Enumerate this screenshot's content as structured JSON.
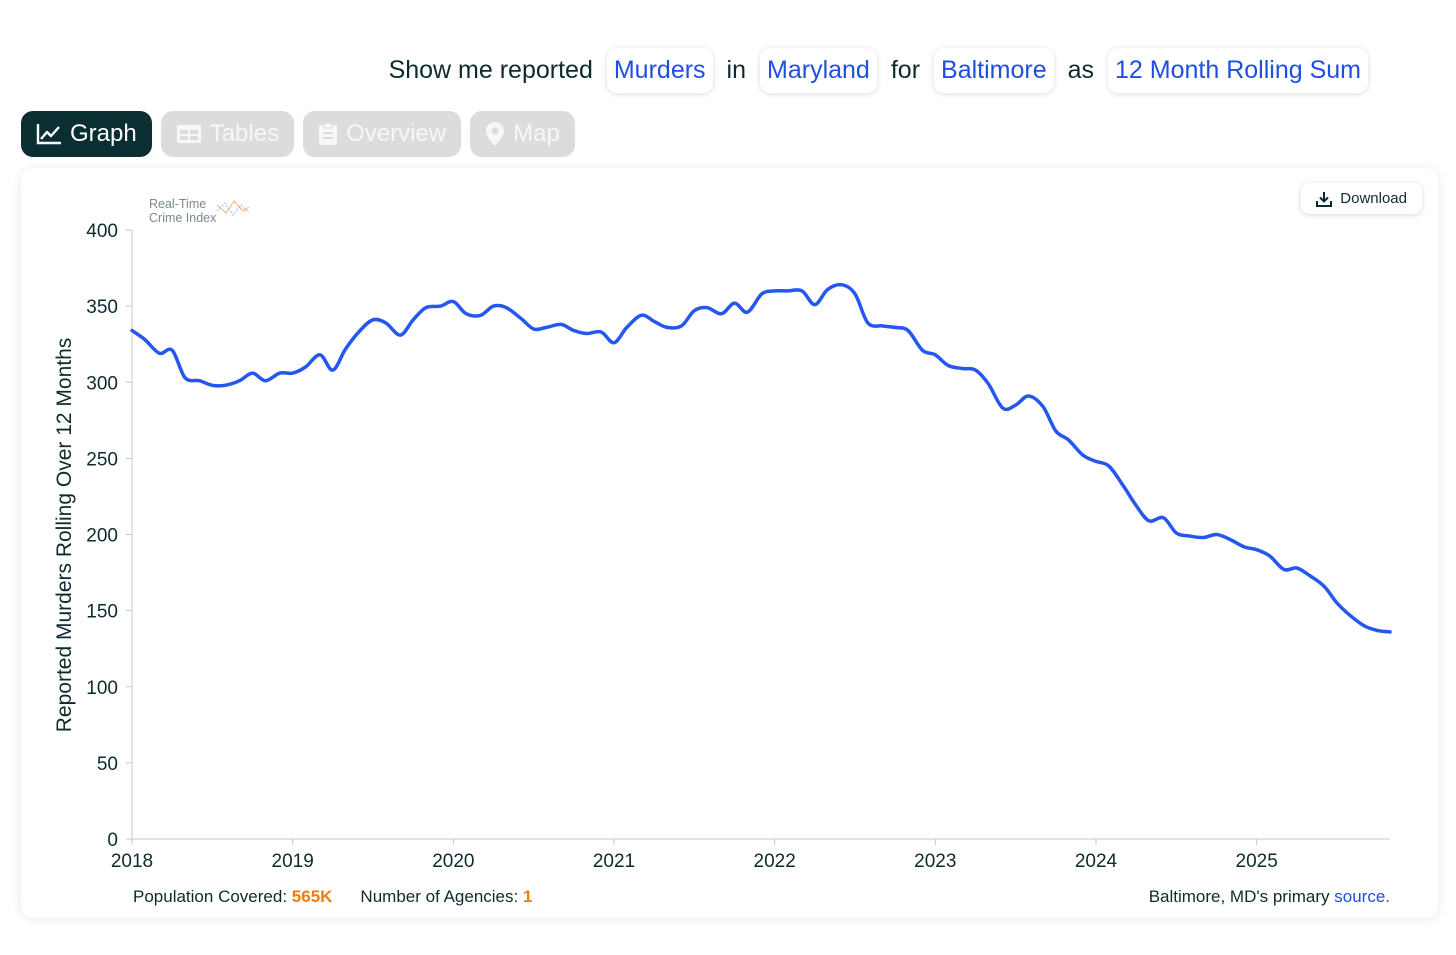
{
  "query": {
    "prefix": "Show me reported",
    "crime": "Murders",
    "in_word": "in",
    "state": "Maryland",
    "for_word": "for",
    "agency": "Baltimore",
    "as_word": "as",
    "measure": "12 Month Rolling Sum"
  },
  "tabs": [
    {
      "label": "Graph",
      "icon": "line-chart-icon",
      "active": true
    },
    {
      "label": "Tables",
      "icon": "table-icon",
      "active": false
    },
    {
      "label": "Overview",
      "icon": "clipboard-icon",
      "active": false
    },
    {
      "label": "Map",
      "icon": "map-pin-icon",
      "active": false
    }
  ],
  "download_label": "Download",
  "logo": {
    "line1": "Real-Time",
    "line2": "Crime Index"
  },
  "footer": {
    "population_label": "Population Covered:",
    "population_value": "565K",
    "agencies_label": "Number of Agencies:",
    "agencies_value": "1",
    "source_prefix": "Baltimore, MD's primary",
    "source_link": "source."
  },
  "colors": {
    "line": "#2457ee",
    "accent": "#f07d10",
    "link": "#1f4fe0",
    "tab_active": "#0a2e31"
  },
  "chart_data": {
    "type": "line",
    "title": "",
    "xlabel": "",
    "ylabel": "Reported Murders Rolling Over 12 Months",
    "xlim": [
      2018.0,
      2025.83
    ],
    "ylim": [
      0,
      400
    ],
    "xticks": [
      "2018",
      "2019",
      "2020",
      "2021",
      "2022",
      "2023",
      "2024",
      "2025"
    ],
    "yticks": [
      0,
      50,
      100,
      150,
      200,
      250,
      300,
      350,
      400
    ],
    "grid": false,
    "legend": "none",
    "series": [
      {
        "x": [
          2018.0,
          2018.08,
          2018.17,
          2018.25,
          2018.33,
          2018.42,
          2018.5,
          2018.58,
          2018.67,
          2018.75,
          2018.83,
          2018.92,
          2019.0,
          2019.08,
          2019.17,
          2019.25,
          2019.33,
          2019.42,
          2019.5,
          2019.58,
          2019.67,
          2019.75,
          2019.83,
          2019.92,
          2020.0,
          2020.08,
          2020.17,
          2020.25,
          2020.33,
          2020.42,
          2020.5,
          2020.58,
          2020.67,
          2020.75,
          2020.83,
          2020.92,
          2021.0,
          2021.08,
          2021.17,
          2021.25,
          2021.33,
          2021.42,
          2021.5,
          2021.58,
          2021.67,
          2021.75,
          2021.83,
          2021.92,
          2022.0,
          2022.08,
          2022.17,
          2022.25,
          2022.33,
          2022.42,
          2022.5,
          2022.58,
          2022.67,
          2022.75,
          2022.83,
          2022.92,
          2023.0,
          2023.08,
          2023.17,
          2023.25,
          2023.33,
          2023.42,
          2023.5,
          2023.58,
          2023.67,
          2023.75,
          2023.83,
          2023.92,
          2024.0,
          2024.08,
          2024.17,
          2024.25,
          2024.33,
          2024.42,
          2024.5,
          2024.58,
          2024.67,
          2024.75,
          2024.83,
          2024.92,
          2025.0,
          2025.08,
          2025.17,
          2025.25,
          2025.33,
          2025.42,
          2025.5,
          2025.58,
          2025.67,
          2025.75,
          2025.83
        ],
        "values": [
          334,
          328,
          319,
          321,
          303,
          301,
          298,
          298,
          301,
          306,
          301,
          306,
          306,
          310,
          318,
          308,
          322,
          334,
          341,
          339,
          331,
          341,
          349,
          350,
          353,
          345,
          344,
          350,
          349,
          342,
          335,
          336,
          338,
          334,
          332,
          333,
          326,
          336,
          344,
          340,
          336,
          337,
          347,
          349,
          345,
          352,
          346,
          358,
          360,
          360,
          360,
          351,
          361,
          364,
          358,
          339,
          337,
          336,
          334,
          321,
          318,
          311,
          309,
          308,
          299,
          283,
          285,
          291,
          284,
          268,
          262,
          252,
          248,
          245,
          232,
          219,
          209,
          211,
          201,
          199,
          198,
          200,
          197,
          192,
          190,
          186,
          177,
          178,
          173,
          166,
          155,
          147,
          140,
          137,
          136
        ]
      }
    ]
  }
}
